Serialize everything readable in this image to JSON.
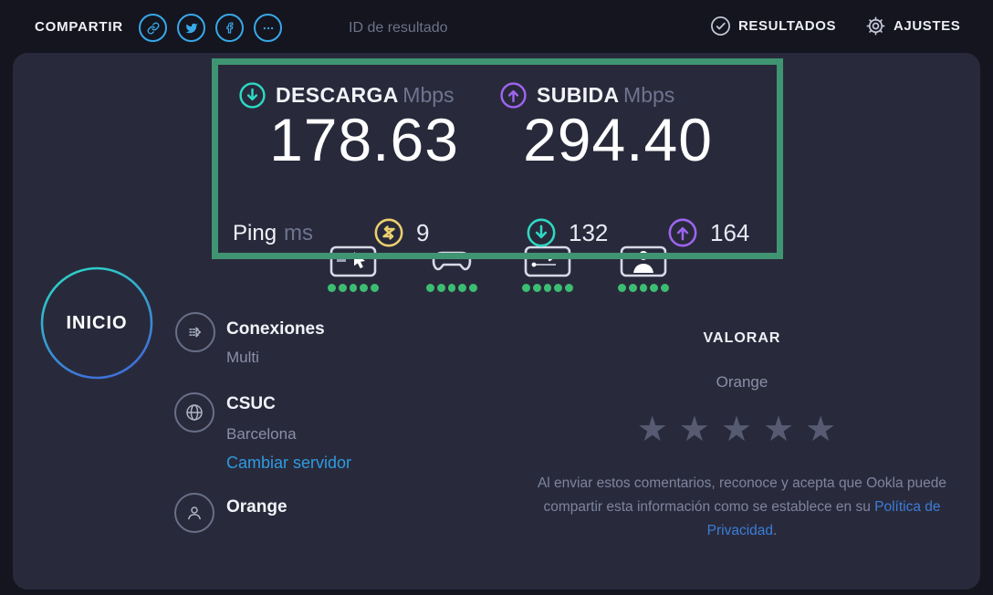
{
  "topbar": {
    "share_label": "COMPARTIR",
    "result_id_label": "ID de resultado",
    "results_label": "RESULTADOS",
    "settings_label": "AJUSTES"
  },
  "result": {
    "download": {
      "label": "DESCARGA",
      "unit": "Mbps",
      "value": "178.63"
    },
    "upload": {
      "label": "SUBIDA",
      "unit": "Mbps",
      "value": "294.40"
    },
    "ping": {
      "label": "Ping",
      "unit": "ms",
      "idle": "9",
      "download": "132",
      "upload": "164"
    }
  },
  "quality_icons": [
    {
      "name": "browsing",
      "dots": 5
    },
    {
      "name": "gaming",
      "dots": 5
    },
    {
      "name": "streaming",
      "dots": 5
    },
    {
      "name": "video-chat",
      "dots": 5
    }
  ],
  "restart_label": "INICIO",
  "details": {
    "connections": {
      "title": "Conexiones",
      "value": "Multi"
    },
    "server": {
      "name": "CSUC",
      "location": "Barcelona",
      "change_link": "Cambiar servidor"
    },
    "isp": {
      "name": "Orange"
    }
  },
  "rating": {
    "title": "VALORAR",
    "provider": "Orange",
    "stars": 5,
    "disclaimer_text": "Al enviar estos comentarios, reconoce y acepta que Ookla puede compartir esta información como se establece en su ",
    "disclaimer_link": "Política de Privacidad",
    "disclaimer_end": "."
  },
  "colors": {
    "background": "#14151f",
    "panel": "#282a3b",
    "highlight_green": "#3f9472",
    "quality_dot_green": "#3dbd71",
    "download_teal": "#2ed9c4",
    "upload_purple": "#9e64f0",
    "ping_yellow": "#ecd06d",
    "share_blue": "#38a8e8",
    "change_server_link_blue": "#2f9ae0",
    "privacy_link_blue": "#3b7dd8"
  }
}
